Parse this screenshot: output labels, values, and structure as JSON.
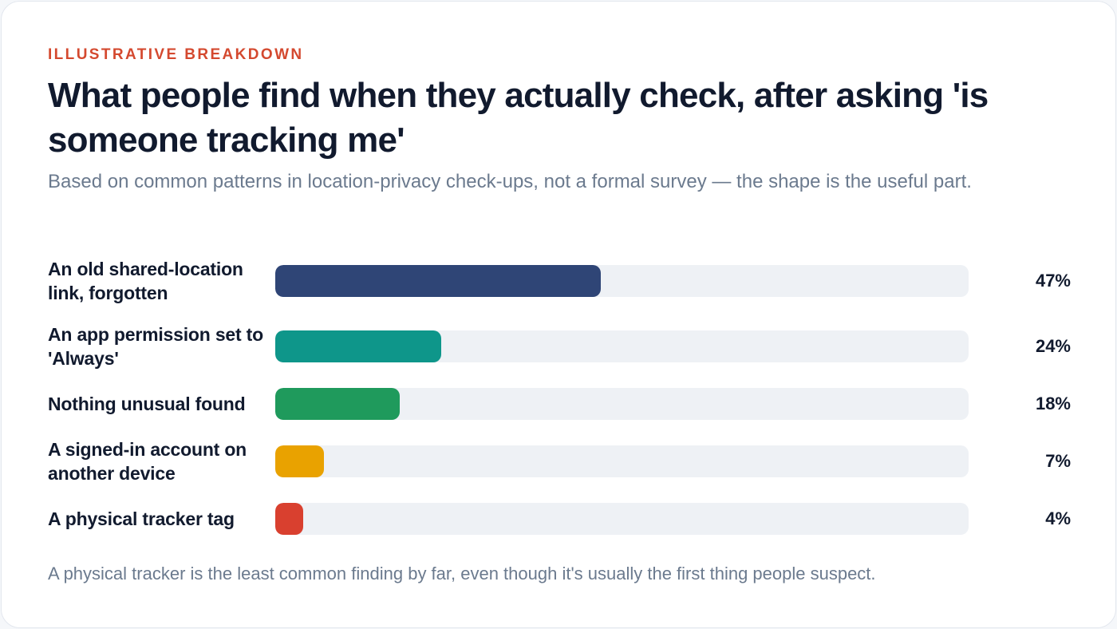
{
  "header": {
    "eyebrow": "ILLUSTRATIVE BREAKDOWN",
    "title": "What people find when they actually check, after asking 'is someone tracking me'",
    "subtitle": "Based on common patterns in location-privacy check-ups, not a formal survey — the shape is the useful part."
  },
  "chart_data": {
    "type": "bar",
    "orientation": "horizontal",
    "categories": [
      "An old shared-location link, forgotten",
      "An app permission set to 'Always'",
      "Nothing unusual found",
      "A signed-in account on another device",
      "A physical tracker tag"
    ],
    "values": [
      47,
      24,
      18,
      7,
      4
    ],
    "value_labels": [
      "47%",
      "24%",
      "18%",
      "7%",
      "4%"
    ],
    "colors": [
      "#2f4576",
      "#0e968a",
      "#1f9a5c",
      "#e9a200",
      "#d9402f"
    ],
    "xlim": [
      0,
      100
    ],
    "track_color": "#eef1f5",
    "grid": false,
    "legend": "none"
  },
  "footnote": "A physical tracker is the least common finding by far, even though it's usually the first thing people suspect."
}
